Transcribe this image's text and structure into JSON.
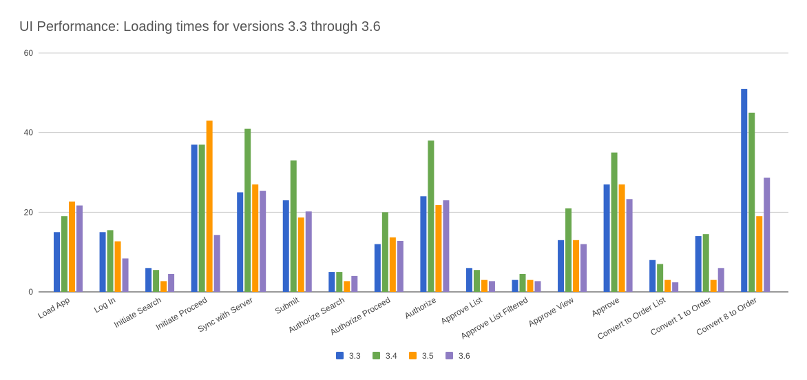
{
  "chart_data": {
    "type": "bar",
    "title": "UI Performance: Loading times for versions 3.3 through 3.6",
    "xlabel": "",
    "ylabel": "",
    "ylim": [
      0,
      60
    ],
    "yticks": [
      0,
      20,
      40,
      60
    ],
    "grid": true,
    "legend_position": "bottom",
    "categories": [
      "Load App",
      "Log In",
      "Initiate Search",
      "Initiate Proceed",
      "Sync with Server",
      "Submit",
      "Authorize Search",
      "Authorize Proceed",
      "Authorize",
      "Approve List",
      "Approve List Filtered",
      "Approve View",
      "Approve",
      "Convert to Order List",
      "Convert 1 to Order",
      "Convert 8 to Order"
    ],
    "series": [
      {
        "name": "3.3",
        "color": "#3366cc",
        "values": [
          15,
          15,
          6,
          37,
          25,
          23,
          5,
          12,
          24,
          6,
          3,
          13,
          27,
          8,
          14,
          51
        ]
      },
      {
        "name": "3.4",
        "color": "#6aa84f",
        "values": [
          19,
          15.5,
          5.5,
          37,
          41,
          33,
          5,
          20,
          38,
          5.5,
          4.5,
          21,
          35,
          7,
          14.5,
          45
        ]
      },
      {
        "name": "3.5",
        "color": "#ff9900",
        "values": [
          22.7,
          12.7,
          2.7,
          43,
          27,
          18.7,
          2.7,
          13.7,
          21.8,
          3,
          3,
          13,
          27,
          3,
          3,
          19
        ]
      },
      {
        "name": "3.6",
        "color": "#8e7cc3",
        "values": [
          21.7,
          8.4,
          4.5,
          14.3,
          25.4,
          20.2,
          4,
          12.8,
          23,
          2.7,
          2.7,
          12,
          23.3,
          2.4,
          6,
          28.7
        ]
      }
    ]
  }
}
